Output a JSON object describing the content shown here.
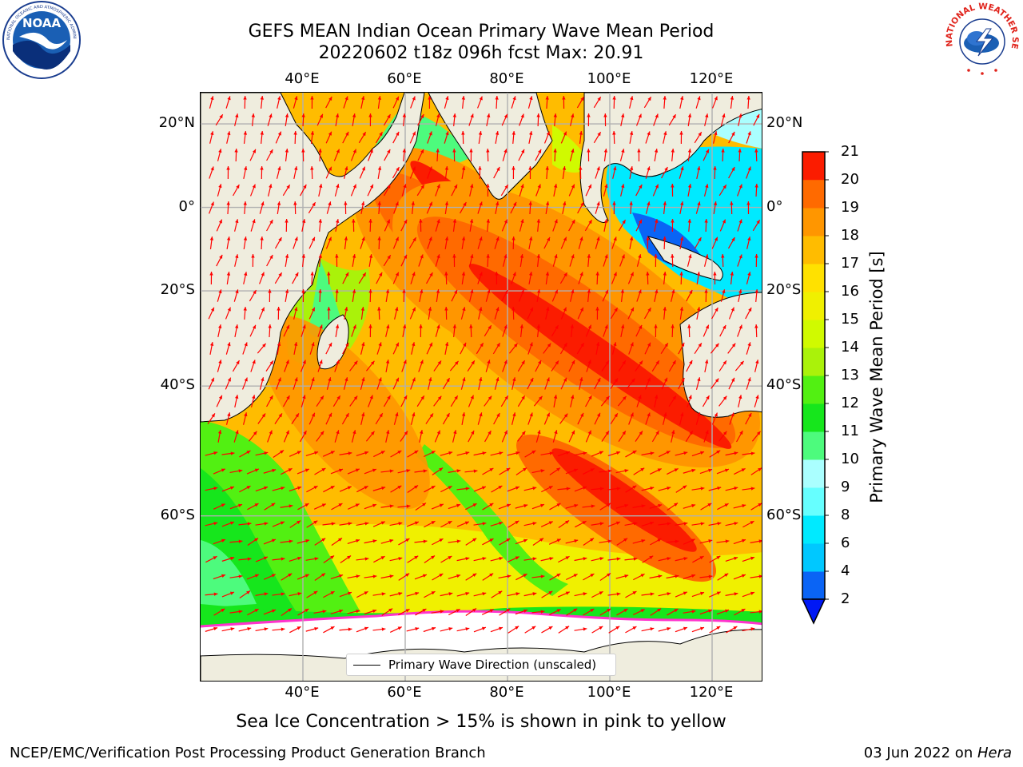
{
  "header": {
    "title_line1": "GEFS MEAN Indian Ocean Primary Wave Mean Period",
    "title_line2": "20220602 t18z 096h fcst   Max: 20.91"
  },
  "logos": {
    "left": "NOAA",
    "left_ring": "NATIONAL OCEANIC AND ATMOSPHERIC ADMINISTRATION · U.S. DEPARTMENT OF COMMERCE",
    "right": "NATIONAL WEATHER SERVICE"
  },
  "map": {
    "lon_labels": [
      "40°E",
      "60°E",
      "80°E",
      "100°E",
      "120°E"
    ],
    "lat_labels": [
      "20°N",
      "0°",
      "20°S",
      "40°S",
      "60°S"
    ],
    "lon_values": [
      40,
      60,
      80,
      100,
      120
    ],
    "lat_values": [
      20,
      0,
      -20,
      -40,
      -60
    ],
    "extent": {
      "lon": [
        20,
        130
      ],
      "lat": [
        -75,
        27
      ]
    },
    "grid": true,
    "land_color": "#efedde",
    "ice_color": "#ffffff",
    "arrow_color": "#ff0000",
    "legend_label": "Primary Wave Direction (unscaled)",
    "legend_placement": "bottom-center"
  },
  "colorbar": {
    "label": "Primary Wave Mean Period [s]",
    "ticks": [
      "21",
      "20",
      "19",
      "18",
      "17",
      "16",
      "15",
      "14",
      "13",
      "12",
      "11",
      "10",
      "9",
      "8",
      "6",
      "4",
      "2"
    ],
    "levels": [
      2,
      4,
      6,
      8,
      9,
      10,
      11,
      12,
      13,
      14,
      15,
      16,
      17,
      18,
      19,
      20,
      21
    ],
    "colors": [
      "#0a64f5",
      "#00c8ff",
      "#00eaff",
      "#66ffff",
      "#aaffff",
      "#4dfb7d",
      "#16e61c",
      "#52f012",
      "#aaf20a",
      "#d0fa00",
      "#f0f000",
      "#ffe100",
      "#ffbc00",
      "#ff9600",
      "#ff6a00",
      "#ff4400",
      "#fb1c00"
    ],
    "extend": "min",
    "extend_color": "#0018f5"
  },
  "caption": "Sea Ice Concentration > 15% is shown in pink to yellow",
  "footer": {
    "left": "NCEP/EMC/Verification Post Processing Product Generation Branch",
    "date": "03 Jun 2022 on ",
    "host": "Hera"
  }
}
